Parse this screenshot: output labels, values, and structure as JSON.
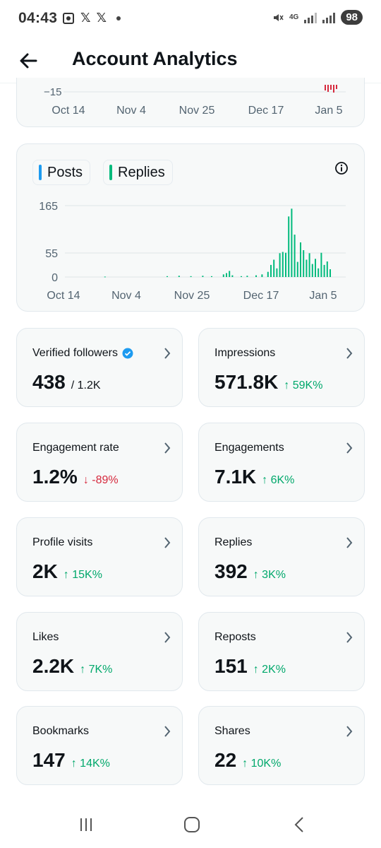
{
  "status_bar": {
    "time": "04:43",
    "notif_icons": [
      "screenshot-icon",
      "x-logo-icon",
      "x-logo-icon"
    ],
    "network": "4G",
    "battery": "98"
  },
  "header": {
    "title": "Account Analytics"
  },
  "top_chart": {
    "y_tick": "−15",
    "x_ticks": [
      "Oct 14",
      "Nov 4",
      "Nov 25",
      "Dec 17",
      "Jan 5"
    ]
  },
  "posts_chart": {
    "legend": [
      {
        "label": "Posts",
        "color": "#1d9bf0"
      },
      {
        "label": "Replies",
        "color": "#00ba7c"
      }
    ],
    "y_ticks": [
      "165",
      "55",
      "0"
    ],
    "x_ticks": [
      "Oct 14",
      "Nov 4",
      "Nov 25",
      "Dec 17",
      "Jan 5"
    ]
  },
  "chart_data": {
    "type": "bar",
    "title": "",
    "xlabel": "",
    "ylabel": "",
    "ylim": [
      0,
      165
    ],
    "x_range": [
      "Oct 14",
      "Jan 12"
    ],
    "series": [
      {
        "name": "Posts",
        "color": "#1d9bf0",
        "values": []
      },
      {
        "name": "Replies",
        "color": "#00ba7c",
        "points": [
          {
            "x": "Oct 28",
            "y": 1
          },
          {
            "x": "Nov 18",
            "y": 2
          },
          {
            "x": "Nov 22",
            "y": 3
          },
          {
            "x": "Nov 26",
            "y": 2
          },
          {
            "x": "Nov 30",
            "y": 3
          },
          {
            "x": "Dec 3",
            "y": 2
          },
          {
            "x": "Dec 7",
            "y": 6
          },
          {
            "x": "Dec 8",
            "y": 9
          },
          {
            "x": "Dec 9",
            "y": 14
          },
          {
            "x": "Dec 10",
            "y": 4
          },
          {
            "x": "Dec 13",
            "y": 2
          },
          {
            "x": "Dec 15",
            "y": 3
          },
          {
            "x": "Dec 18",
            "y": 4
          },
          {
            "x": "Dec 20",
            "y": 6
          },
          {
            "x": "Dec 22",
            "y": 12
          },
          {
            "x": "Dec 23",
            "y": 28
          },
          {
            "x": "Dec 24",
            "y": 40
          },
          {
            "x": "Dec 25",
            "y": 20
          },
          {
            "x": "Dec 26",
            "y": 55
          },
          {
            "x": "Dec 27",
            "y": 58
          },
          {
            "x": "Dec 28",
            "y": 56
          },
          {
            "x": "Dec 29",
            "y": 140
          },
          {
            "x": "Dec 30",
            "y": 158
          },
          {
            "x": "Dec 31",
            "y": 98
          },
          {
            "x": "Jan 1",
            "y": 35
          },
          {
            "x": "Jan 2",
            "y": 80
          },
          {
            "x": "Jan 3",
            "y": 62
          },
          {
            "x": "Jan 4",
            "y": 40
          },
          {
            "x": "Jan 5",
            "y": 55
          },
          {
            "x": "Jan 6",
            "y": 30
          },
          {
            "x": "Jan 7",
            "y": 42
          },
          {
            "x": "Jan 8",
            "y": 20
          },
          {
            "x": "Jan 9",
            "y": 56
          },
          {
            "x": "Jan 10",
            "y": 28
          },
          {
            "x": "Jan 11",
            "y": 36
          },
          {
            "x": "Jan 12",
            "y": 18
          }
        ]
      }
    ]
  },
  "tiles": [
    {
      "label": "Verified followers",
      "value": "438",
      "sub": "/ 1.2K",
      "delta": "",
      "dir": "",
      "verified": true
    },
    {
      "label": "Impressions",
      "value": "571.8K",
      "sub": "",
      "delta": "↑ 59K%",
      "dir": "up"
    },
    {
      "label": "Engagement rate",
      "value": "1.2%",
      "sub": "",
      "delta": "↓ -89%",
      "dir": "down"
    },
    {
      "label": "Engagements",
      "value": "7.1K",
      "sub": "",
      "delta": "↑ 6K%",
      "dir": "up"
    },
    {
      "label": "Profile visits",
      "value": "2K",
      "sub": "",
      "delta": "↑ 15K%",
      "dir": "up"
    },
    {
      "label": "Replies",
      "value": "392",
      "sub": "",
      "delta": "↑ 3K%",
      "dir": "up"
    },
    {
      "label": "Likes",
      "value": "2.2K",
      "sub": "",
      "delta": "↑ 7K%",
      "dir": "up"
    },
    {
      "label": "Reposts",
      "value": "151",
      "sub": "",
      "delta": "↑ 2K%",
      "dir": "up"
    },
    {
      "label": "Bookmarks",
      "value": "147",
      "sub": "",
      "delta": "↑ 14K%",
      "dir": "up"
    },
    {
      "label": "Shares",
      "value": "22",
      "sub": "",
      "delta": "↑ 10K%",
      "dir": "up"
    }
  ],
  "colors": {
    "accent_blue": "#1d9bf0",
    "positive": "#00a86b",
    "negative": "#d6293d",
    "card_bg": "#f7f9f9"
  }
}
